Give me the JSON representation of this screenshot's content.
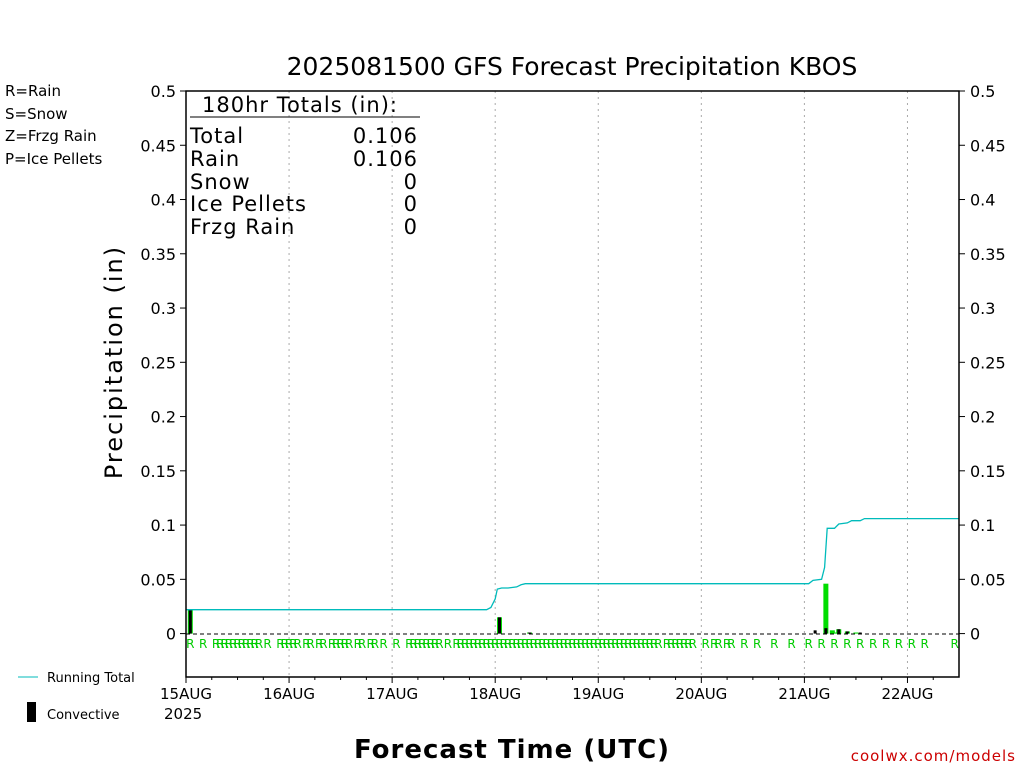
{
  "chart_data": {
    "type": "bar",
    "title": "2025081500 GFS Forecast Precipitation KBOS",
    "xlabel": "Forecast Time (UTC)",
    "ylabel": "Precipitation (in)",
    "ylim": [
      -0.04,
      0.5
    ],
    "yticks": [
      "0.5",
      "0.45",
      "0.4",
      "0.35",
      "0.3",
      "0.25",
      "0.2",
      "0.15",
      "0.1",
      "0.05",
      "0"
    ],
    "ytick_values": [
      0.5,
      0.45,
      0.4,
      0.35,
      0.3,
      0.25,
      0.2,
      0.15,
      0.1,
      0.05,
      0
    ],
    "forecast_hours": [
      0,
      180
    ],
    "x_ticks": [
      {
        "label": "15AUG",
        "hour": 0
      },
      {
        "label": "16AUG",
        "hour": 24
      },
      {
        "label": "17AUG",
        "hour": 48
      },
      {
        "label": "18AUG",
        "hour": 72
      },
      {
        "label": "19AUG",
        "hour": 96
      },
      {
        "label": "20AUG",
        "hour": 120
      },
      {
        "label": "21AUG",
        "hour": 144
      },
      {
        "label": "22AUG",
        "hour": 168
      }
    ],
    "year_label": "2025",
    "grid": true,
    "legend": {
      "types": [
        {
          "text": "R=Rain",
          "color": "#00cc00"
        },
        {
          "text": "S=Snow",
          "color": "#3355ff"
        },
        {
          "text": "Z=Frzg Rain",
          "color": "#ff9933"
        },
        {
          "text": "P=Ice Pellets",
          "color": "#ff00aa"
        }
      ],
      "running_total": "Running Total",
      "convective": "Convective"
    },
    "totals": {
      "header": "180hr Totals (in):",
      "rows": [
        {
          "label": "Total",
          "value": "0.106"
        },
        {
          "label": "Rain",
          "value": "0.106"
        },
        {
          "label": "Snow",
          "value": "0"
        },
        {
          "label": "Ice Pellets",
          "value": "0"
        },
        {
          "label": "Frzg Rain",
          "value": "0"
        }
      ]
    },
    "series": [
      {
        "name": "Running Total",
        "type": "line",
        "color": "#00bbbb",
        "points": [
          [
            0,
            0.022
          ],
          [
            1,
            0.022
          ],
          [
            3,
            0.022
          ],
          [
            70,
            0.022
          ],
          [
            71,
            0.024
          ],
          [
            72,
            0.032
          ],
          [
            72.5,
            0.041
          ],
          [
            73.5,
            0.042
          ],
          [
            75,
            0.042
          ],
          [
            77,
            0.043
          ],
          [
            78,
            0.045
          ],
          [
            79,
            0.046
          ],
          [
            120,
            0.046
          ],
          [
            145,
            0.046
          ],
          [
            146,
            0.049
          ],
          [
            148,
            0.05
          ],
          [
            148.7,
            0.061
          ],
          [
            149.3,
            0.097
          ],
          [
            151,
            0.097
          ],
          [
            152,
            0.101
          ],
          [
            154,
            0.102
          ],
          [
            155,
            0.104
          ],
          [
            157,
            0.104
          ],
          [
            158,
            0.106
          ],
          [
            180,
            0.106
          ]
        ]
      },
      {
        "name": "Precipitation",
        "type": "bar",
        "color": "#00dd00",
        "bars": [
          [
            1,
            0.022
          ],
          [
            73,
            0.015
          ],
          [
            80,
            0.001
          ],
          [
            149,
            0.046
          ],
          [
            150.5,
            0.003
          ],
          [
            151.5,
            0.001
          ],
          [
            152,
            0.004
          ],
          [
            154,
            0.002
          ],
          [
            156,
            0.001
          ]
        ]
      },
      {
        "name": "Convective",
        "type": "bar",
        "color": "#000000",
        "bars": [
          [
            1,
            0.022
          ],
          [
            73,
            0.015
          ],
          [
            80,
            0.001
          ],
          [
            146.5,
            0.003
          ],
          [
            149,
            0.005
          ],
          [
            152,
            0.004
          ],
          [
            154,
            0.002
          ],
          [
            157,
            0.001
          ]
        ]
      }
    ],
    "precip_type_hours": [
      1,
      4,
      7,
      8,
      9,
      10,
      11,
      12,
      13,
      14,
      15,
      16,
      17,
      19,
      22,
      23,
      24,
      25,
      26,
      28,
      29,
      31,
      32,
      34,
      35,
      36,
      37,
      38,
      40,
      41,
      43,
      44,
      46,
      49,
      52,
      53,
      54,
      55,
      56,
      57,
      58,
      59,
      61,
      63,
      64,
      65,
      66,
      67,
      68,
      69,
      70,
      71,
      72,
      73,
      74,
      75,
      76,
      77,
      78,
      79,
      80,
      81,
      82,
      83,
      84,
      85,
      86,
      87,
      88,
      89,
      90,
      91,
      92,
      93,
      94,
      95,
      96,
      97,
      98,
      99,
      100,
      101,
      102,
      103,
      104,
      105,
      106,
      107,
      108,
      109,
      110,
      112,
      113,
      114,
      115,
      116,
      117,
      118,
      121,
      123,
      124,
      126,
      127,
      130,
      133,
      137,
      141,
      145,
      148,
      151,
      154,
      157,
      160,
      163,
      166,
      169,
      172,
      179
    ],
    "precip_type_letter": "R"
  },
  "credit": "coolwx.com/models"
}
